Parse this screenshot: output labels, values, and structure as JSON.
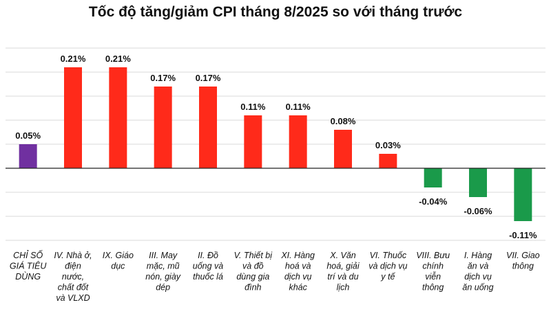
{
  "chart_data": {
    "type": "bar",
    "title": "Tốc độ tăng/giảm CPI tháng 8/2025 so với tháng trước",
    "xlabel": "",
    "ylabel": "",
    "ylim": [
      -0.15,
      0.25
    ],
    "grid": true,
    "categories": [
      "CHỈ SỐ GIÁ TIÊU DÙNG",
      "IV. Nhà ở, điện nước, chất đốt và VLXD",
      "IX. Giáo dục",
      "III. May mặc, mũ nón, giày dép",
      "II. Đồ uống và thuốc lá",
      "V. Thiết bị và đồ dùng gia đình",
      "XI. Hàng hoá và dịch vụ khác",
      "X. Văn hoá, giải trí và du lịch",
      "VI. Thuốc và dịch vụ y tế",
      "VIII. Bưu chính viễn thông",
      "I. Hàng ăn và dịch vụ ăn uống",
      "VII. Giao thông"
    ],
    "category_lines": [
      [
        "CHỈ SỐ",
        "GIÁ TIÊU",
        "DÙNG"
      ],
      [
        "IV. Nhà ở,",
        "điện",
        "nước,",
        "chất đốt",
        "và VLXD"
      ],
      [
        "IX. Giáo",
        "dục"
      ],
      [
        "III. May",
        "mặc, mũ",
        "nón, giày",
        "dép"
      ],
      [
        "II. Đồ",
        "uống và",
        "thuốc lá"
      ],
      [
        "V. Thiết bị",
        "và đồ",
        "dùng gia",
        "đình"
      ],
      [
        "XI. Hàng",
        "hoá và",
        "dịch vụ",
        "khác"
      ],
      [
        "X. Văn",
        "hoá, giải",
        "trí và du",
        "lịch"
      ],
      [
        "VI. Thuốc",
        "và dịch vụ",
        "y tế"
      ],
      [
        "VIII. Bưu",
        "chính",
        "viễn",
        "thông"
      ],
      [
        "I. Hàng",
        "ăn và",
        "dịch vụ",
        "ăn uống"
      ],
      [
        "VII. Giao",
        "thông"
      ]
    ],
    "values": [
      0.05,
      0.21,
      0.21,
      0.17,
      0.17,
      0.11,
      0.11,
      0.08,
      0.03,
      -0.04,
      -0.06,
      -0.11
    ],
    "labels": [
      "0.05%",
      "0.21%",
      "0.21%",
      "0.17%",
      "0.17%",
      "0.11%",
      "0.11%",
      "0.08%",
      "0.03%",
      "-0.04%",
      "-0.06%",
      "-0.11%"
    ],
    "colors": {
      "total": "#7030a0",
      "increase": "#ff2a1a",
      "decrease": "#1a9a4a"
    },
    "bar_color_keys": [
      "total",
      "increase",
      "increase",
      "increase",
      "increase",
      "increase",
      "increase",
      "increase",
      "increase",
      "decrease",
      "decrease",
      "decrease"
    ]
  }
}
